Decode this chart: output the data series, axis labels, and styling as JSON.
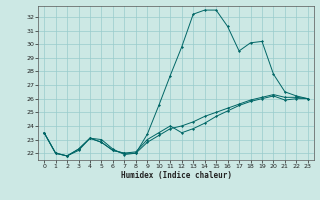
{
  "xlabel": "Humidex (Indice chaleur)",
  "bg_color": "#cce8e4",
  "grid_color": "#99cccc",
  "line_color": "#006666",
  "xlim": [
    -0.5,
    23.5
  ],
  "ylim": [
    21.5,
    32.8
  ],
  "yticks": [
    22,
    23,
    24,
    25,
    26,
    27,
    28,
    29,
    30,
    31,
    32
  ],
  "xticks": [
    0,
    1,
    2,
    3,
    4,
    5,
    6,
    7,
    8,
    9,
    10,
    11,
    12,
    13,
    14,
    15,
    16,
    17,
    18,
    19,
    20,
    21,
    22,
    23
  ],
  "series": [
    [
      23.5,
      22.0,
      21.8,
      22.2,
      23.1,
      23.0,
      22.3,
      21.9,
      22.0,
      23.4,
      25.5,
      27.7,
      29.8,
      32.2,
      32.5,
      32.5,
      31.3,
      29.5,
      30.1,
      30.2,
      27.8,
      26.5,
      26.2,
      26.0
    ],
    [
      23.5,
      22.0,
      21.8,
      22.3,
      23.1,
      22.8,
      22.2,
      22.0,
      22.1,
      23.0,
      23.5,
      24.0,
      23.5,
      23.8,
      24.2,
      24.7,
      25.1,
      25.5,
      25.8,
      26.0,
      26.2,
      25.9,
      26.0,
      26.0
    ],
    [
      23.5,
      22.0,
      21.8,
      22.3,
      23.1,
      22.8,
      22.2,
      22.0,
      22.0,
      22.8,
      23.3,
      23.8,
      24.0,
      24.3,
      24.7,
      25.0,
      25.3,
      25.6,
      25.9,
      26.1,
      26.3,
      26.1,
      26.1,
      26.0
    ]
  ]
}
